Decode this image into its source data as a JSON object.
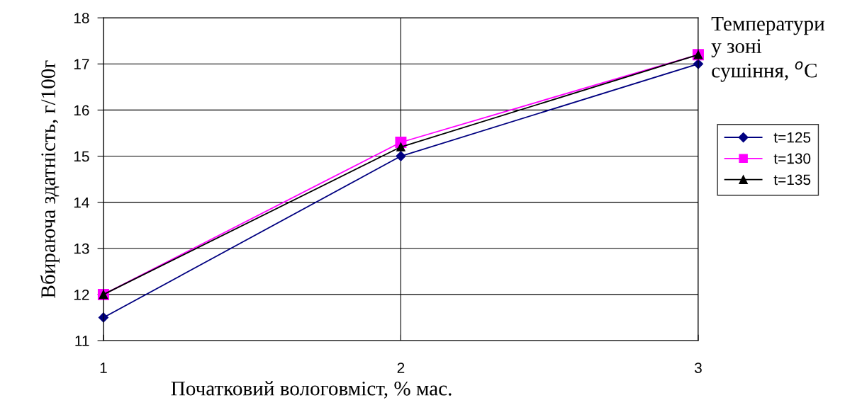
{
  "chart_data": {
    "type": "line",
    "xlabel": "Початковий вологовміст, % мас.",
    "ylabel": "Вбираюча здатність, г/100г",
    "legend_title": "Температури у зоні сушіння, $^{o}$C",
    "x": [
      1,
      2,
      3
    ],
    "xlim": [
      1,
      3
    ],
    "xticks": [
      1,
      2,
      3
    ],
    "ylim": [
      11,
      18
    ],
    "yticks": [
      11,
      12,
      13,
      14,
      15,
      16,
      17,
      18
    ],
    "grid": true,
    "legend": "right",
    "line_style": "solid",
    "series": [
      {
        "name": "t=125",
        "color": "#000080",
        "marker": "diamond",
        "values": [
          11.5,
          15.0,
          17.0
        ]
      },
      {
        "name": "t=130",
        "color": "#ff00ff",
        "marker": "square",
        "values": [
          12.0,
          15.3,
          17.2
        ]
      },
      {
        "name": "t=135",
        "color": "#000000",
        "marker": "triangle",
        "values": [
          12.0,
          15.2,
          17.2
        ]
      }
    ]
  }
}
